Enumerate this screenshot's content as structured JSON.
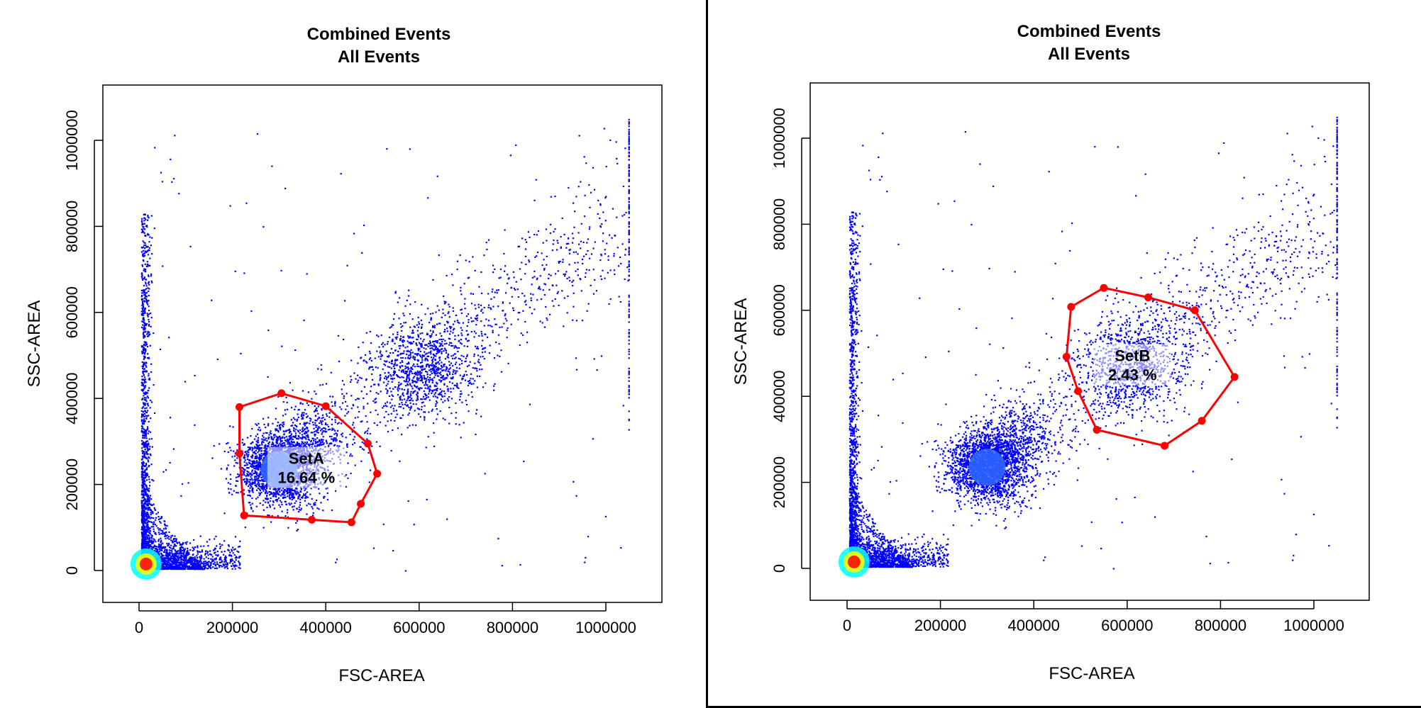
{
  "chart_data": [
    {
      "type": "scatter",
      "title": "Combined Events",
      "subtitle": "All Events",
      "xlabel": "FSC-AREA",
      "ylabel": "SSC-AREA",
      "xlim": [
        -75000,
        1120000
      ],
      "ylim": [
        -75000,
        1130000
      ],
      "xticks": [
        0,
        200000,
        400000,
        600000,
        800000,
        1000000
      ],
      "yticks": [
        0,
        200000,
        400000,
        600000,
        800000,
        1000000
      ],
      "xtick_labels": [
        "0",
        "200000",
        "400000",
        "600000",
        "800000",
        "1000000"
      ],
      "ytick_labels": [
        "0",
        "200000",
        "400000",
        "600000",
        "800000",
        "1000000"
      ],
      "grid": false,
      "point_color": "#0000ff",
      "density_colors": [
        "#00ffff",
        "#ffff00",
        "#ff0000"
      ],
      "gate": {
        "name": "SetA",
        "percent_label": "16.64 %",
        "color": "#ff0000",
        "vertices": [
          [
            215000,
            380000
          ],
          [
            305000,
            412000
          ],
          [
            400000,
            382000
          ],
          [
            490000,
            295000
          ],
          [
            510000,
            225000
          ],
          [
            475000,
            155000
          ],
          [
            455000,
            112000
          ],
          [
            370000,
            118000
          ],
          [
            225000,
            128000
          ],
          [
            215000,
            272000
          ]
        ]
      }
    },
    {
      "type": "scatter",
      "title": "Combined Events",
      "subtitle": "All Events",
      "xlabel": "FSC-AREA",
      "ylabel": "SSC-AREA",
      "xlim": [
        -75000,
        1120000
      ],
      "ylim": [
        -75000,
        1130000
      ],
      "xticks": [
        0,
        200000,
        400000,
        600000,
        800000,
        1000000
      ],
      "yticks": [
        0,
        200000,
        400000,
        600000,
        800000,
        1000000
      ],
      "xtick_labels": [
        "0",
        "200000",
        "400000",
        "600000",
        "800000",
        "1000000"
      ],
      "ytick_labels": [
        "0",
        "200000",
        "400000",
        "600000",
        "800000",
        "1000000"
      ],
      "grid": false,
      "point_color": "#0000ff",
      "density_colors": [
        "#00ffff",
        "#ffff00",
        "#ff0000"
      ],
      "gate": {
        "name": "SetB",
        "percent_label": "2.43 %",
        "color": "#ff0000",
        "vertices": [
          [
            480000,
            608000
          ],
          [
            550000,
            652000
          ],
          [
            645000,
            630000
          ],
          [
            745000,
            600000
          ],
          [
            830000,
            445000
          ],
          [
            760000,
            343000
          ],
          [
            680000,
            285000
          ],
          [
            535000,
            322000
          ],
          [
            495000,
            412000
          ],
          [
            470000,
            492000
          ]
        ]
      }
    }
  ]
}
